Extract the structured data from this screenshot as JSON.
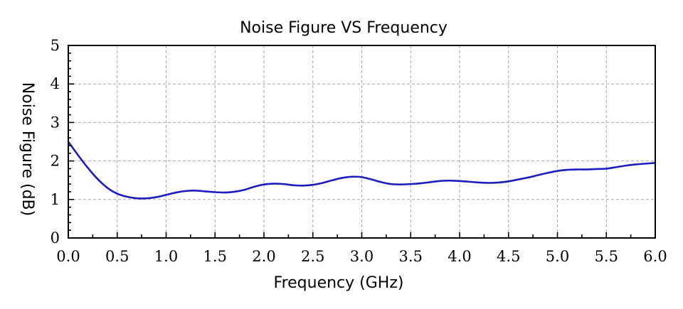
{
  "chart_data": {
    "type": "line",
    "title": "Noise Figure  VS  Frequency",
    "xlabel": "Frequency (GHz)",
    "ylabel": "Noise Figure (dB)",
    "xlim": [
      0,
      6
    ],
    "ylim": [
      0,
      5
    ],
    "xticks": [
      "0.0",
      "0.5",
      "1.0",
      "1.5",
      "2.0",
      "2.5",
      "3.0",
      "3.5",
      "4.0",
      "4.5",
      "5.0",
      "5.5",
      "6.0"
    ],
    "yticks": [
      "0",
      "1",
      "2",
      "3",
      "4",
      "5"
    ],
    "grid": true,
    "series": [
      {
        "color": "#1c1cc0",
        "x": [
          0.0,
          0.1,
          0.2,
          0.3,
          0.4,
          0.5,
          0.6,
          0.7,
          0.8,
          0.9,
          1.0,
          1.1,
          1.2,
          1.3,
          1.4,
          1.5,
          1.6,
          1.7,
          1.8,
          1.9,
          2.0,
          2.1,
          2.2,
          2.3,
          2.4,
          2.5,
          2.6,
          2.7,
          2.8,
          2.9,
          3.0,
          3.1,
          3.2,
          3.3,
          3.4,
          3.5,
          3.6,
          3.7,
          3.8,
          3.9,
          4.0,
          4.1,
          4.2,
          4.3,
          4.4,
          4.5,
          4.6,
          4.7,
          4.8,
          4.9,
          5.0,
          5.1,
          5.2,
          5.3,
          5.4,
          5.5,
          5.6,
          5.7,
          5.8,
          5.9,
          6.0
        ],
        "y": [
          2.5,
          2.15,
          1.82,
          1.53,
          1.3,
          1.15,
          1.07,
          1.03,
          1.03,
          1.06,
          1.12,
          1.18,
          1.22,
          1.23,
          1.21,
          1.19,
          1.18,
          1.2,
          1.25,
          1.33,
          1.39,
          1.41,
          1.4,
          1.37,
          1.36,
          1.38,
          1.43,
          1.5,
          1.56,
          1.59,
          1.58,
          1.52,
          1.45,
          1.4,
          1.39,
          1.4,
          1.42,
          1.45,
          1.48,
          1.49,
          1.48,
          1.46,
          1.44,
          1.43,
          1.44,
          1.47,
          1.52,
          1.57,
          1.63,
          1.69,
          1.74,
          1.77,
          1.78,
          1.78,
          1.79,
          1.8,
          1.84,
          1.88,
          1.91,
          1.93,
          1.95
        ]
      }
    ]
  }
}
